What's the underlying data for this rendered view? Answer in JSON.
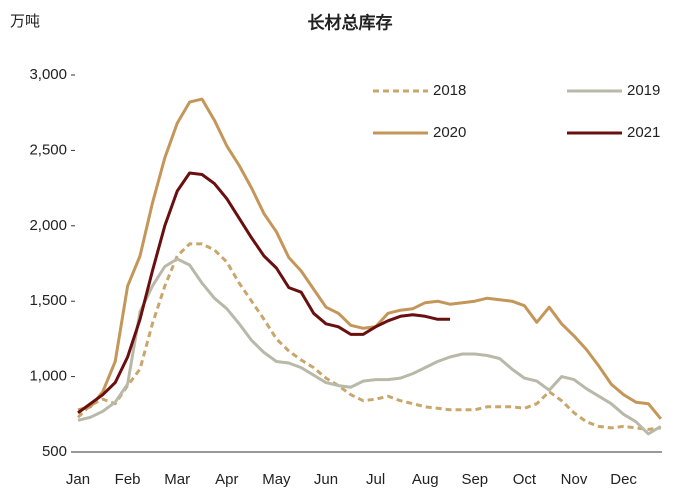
{
  "chart_data": {
    "type": "line",
    "title": "长材总库存",
    "y_unit_label": "万吨",
    "categories": [
      "Jan",
      null,
      null,
      null,
      "Feb",
      null,
      null,
      null,
      "Mar",
      null,
      null,
      null,
      "Apr",
      null,
      null,
      null,
      "May",
      null,
      null,
      null,
      "Jun",
      null,
      null,
      null,
      "Jul",
      null,
      null,
      null,
      "Aug",
      null,
      null,
      null,
      "Sep",
      null,
      null,
      null,
      "Oct",
      null,
      null,
      null,
      "Nov",
      null,
      null,
      null,
      "Dec",
      null,
      null,
      null
    ],
    "series": [
      {
        "name": "2018",
        "color": "#c9a66b",
        "dashed": true,
        "values": [
          730,
          810,
          850,
          820,
          940,
          1050,
          1350,
          1600,
          1800,
          1880,
          1880,
          1840,
          1760,
          1620,
          1500,
          1380,
          1250,
          1170,
          1110,
          1060,
          990,
          940,
          880,
          840,
          850,
          870,
          840,
          820,
          800,
          790,
          780,
          780,
          780,
          800,
          800,
          800,
          790,
          820,
          900,
          840,
          760,
          700,
          670,
          660,
          670,
          660,
          650,
          660
        ]
      },
      {
        "name": "2019",
        "color": "#b8b9a9",
        "dashed": false,
        "values": [
          710,
          730,
          770,
          830,
          950,
          1430,
          1600,
          1730,
          1780,
          1740,
          1620,
          1520,
          1450,
          1350,
          1240,
          1160,
          1100,
          1090,
          1060,
          1010,
          960,
          940,
          930,
          970,
          980,
          980,
          990,
          1020,
          1060,
          1100,
          1130,
          1150,
          1150,
          1140,
          1120,
          1050,
          990,
          970,
          910,
          1000,
          980,
          920,
          870,
          820,
          750,
          700,
          620,
          670
        ]
      },
      {
        "name": "2020",
        "color": "#c49659",
        "dashed": false,
        "values": [
          780,
          800,
          900,
          1100,
          1600,
          1800,
          2150,
          2450,
          2680,
          2820,
          2840,
          2700,
          2530,
          2400,
          2250,
          2080,
          1960,
          1790,
          1700,
          1580,
          1460,
          1420,
          1340,
          1320,
          1330,
          1420,
          1440,
          1450,
          1490,
          1500,
          1480,
          1490,
          1500,
          1520,
          1510,
          1500,
          1470,
          1360,
          1460,
          1350,
          1270,
          1180,
          1070,
          950,
          880,
          830,
          820,
          720
        ]
      },
      {
        "name": "2021",
        "color": "#6a0f10",
        "dashed": false,
        "values": [
          760,
          820,
          880,
          960,
          1130,
          1380,
          1700,
          2000,
          2230,
          2350,
          2340,
          2280,
          2180,
          2050,
          1920,
          1800,
          1720,
          1590,
          1560,
          1420,
          1350,
          1330,
          1280,
          1280,
          1330,
          1370,
          1400,
          1410,
          1400,
          1380,
          1380,
          null,
          null,
          null,
          null,
          null,
          null,
          null,
          null,
          null,
          null,
          null,
          null,
          null,
          null,
          null,
          null,
          null
        ]
      }
    ],
    "ylim": [
      500,
      3000
    ],
    "yticks": [
      500,
      {
        "value": 1000,
        "label": "1,000"
      },
      {
        "value": 1500,
        "label": "1,500"
      },
      {
        "value": 2000,
        "label": "2,000"
      },
      {
        "value": 2500,
        "label": "2,500"
      },
      {
        "value": 3000,
        "label": "3,000"
      }
    ],
    "grid": false
  }
}
